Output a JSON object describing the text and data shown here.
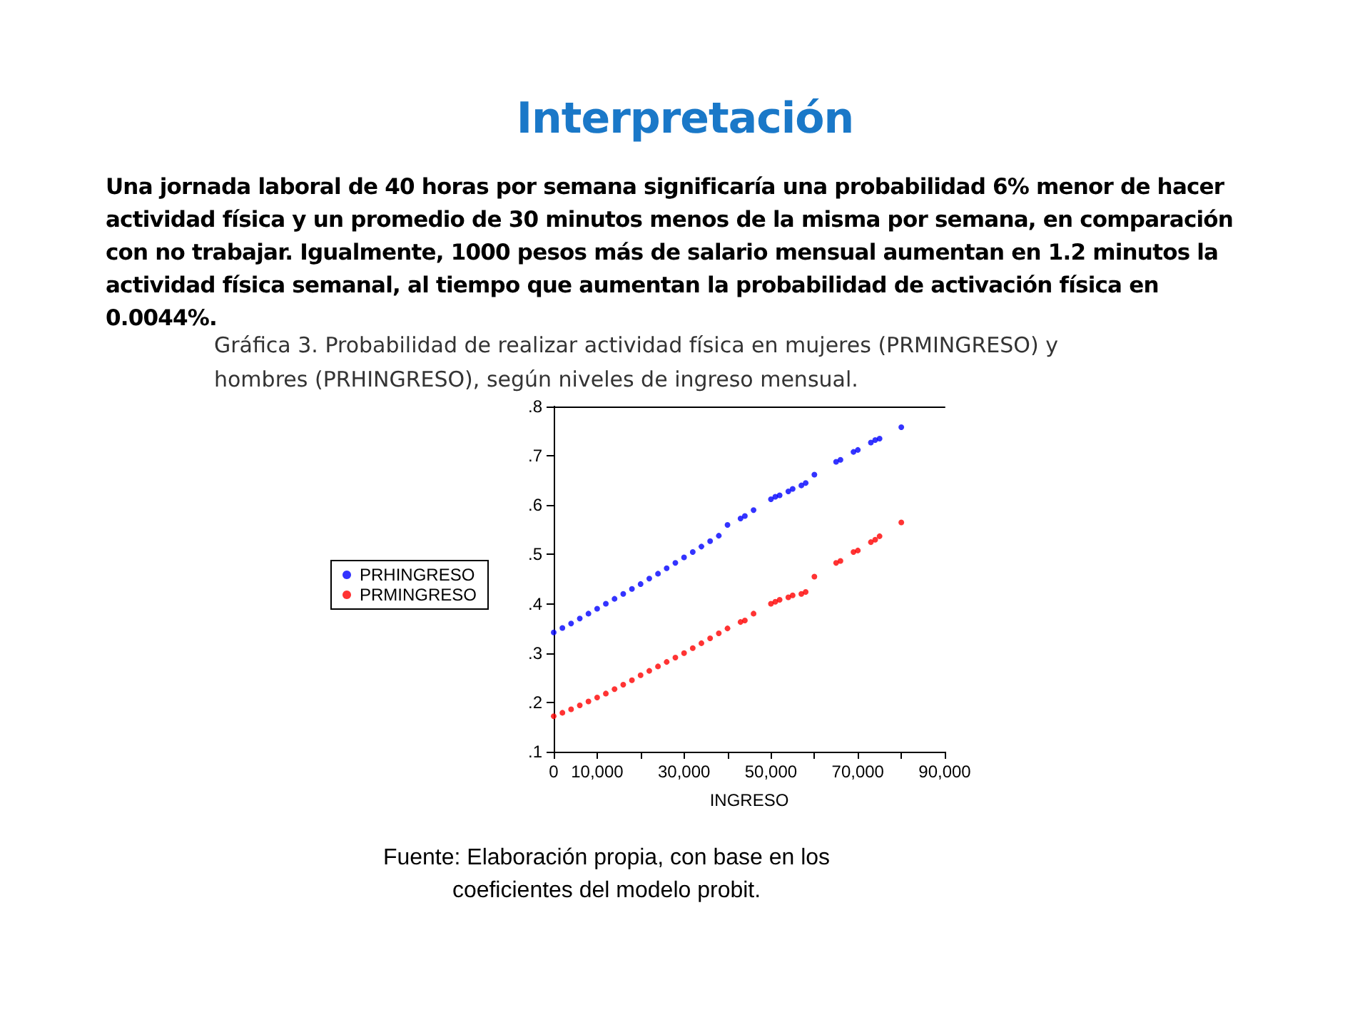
{
  "chart_data": {
    "type": "scatter",
    "title": "Interpretación",
    "subtitle": "Una jornada laboral de 40 horas por semana significaría una probabilidad 6%  menor de hacer actividad física y un promedio de 30 minutos menos de la misma por semana, en comparación con no trabajar. Igualmente, 1000 pesos más de salario mensual aumentan en 1.2 minutos la actividad física semanal, al tiempo que aumentan la probabilidad de activación física en 0.0044%.",
    "annotations": [
      "Gráfica 3. Probabilidad de realizar actividad física en mujeres (PRMINGRESO) y hombres (PRHINGRESO), según niveles de ingreso mensual.",
      "Fuente: Elaboración propia, con base en los coeficientes del modelo probit."
    ],
    "xlabel": "INGRESO",
    "xlim": [
      0,
      90000
    ],
    "xticks": [
      {
        "value": 0,
        "label": "0"
      },
      {
        "value": 10000,
        "label": "10,000"
      },
      {
        "value": 20000,
        "label": null
      },
      {
        "value": 30000,
        "label": "30,000"
      },
      {
        "value": 40000,
        "label": null
      },
      {
        "value": 50000,
        "label": "50,000"
      },
      {
        "value": 60000,
        "label": null
      },
      {
        "value": 70000,
        "label": "70,000"
      },
      {
        "value": 80000,
        "label": null
      },
      {
        "value": 90000,
        "label": "90,000"
      }
    ],
    "ylim": [
      0.1,
      0.8
    ],
    "yticks": [
      {
        "value": 0.1,
        "label": ".1"
      },
      {
        "value": 0.2,
        "label": ".2"
      },
      {
        "value": 0.3,
        "label": ".3"
      },
      {
        "value": 0.4,
        "label": ".4"
      },
      {
        "value": 0.5,
        "label": ".5"
      },
      {
        "value": 0.6,
        "label": ".6"
      },
      {
        "value": 0.7,
        "label": ".7"
      },
      {
        "value": 0.8,
        "label": ".8"
      }
    ],
    "x": [
      0,
      2000,
      4000,
      6000,
      8000,
      10000,
      12000,
      14000,
      16000,
      18000,
      20000,
      22000,
      24000,
      26000,
      28000,
      30000,
      32000,
      34000,
      36000,
      38000,
      40000,
      43000,
      44000,
      46000,
      50000,
      51000,
      52000,
      54000,
      55000,
      57000,
      58000,
      60000,
      65000,
      66000,
      69000,
      70000,
      73000,
      74000,
      75000,
      80000
    ],
    "series": [
      {
        "name": "PRHINGRESO",
        "color": "#0000ff",
        "values": [
          0.342,
          0.351,
          0.36,
          0.37,
          0.38,
          0.39,
          0.4,
          0.41,
          0.42,
          0.43,
          0.44,
          0.451,
          0.461,
          0.472,
          0.483,
          0.494,
          0.505,
          0.516,
          0.527,
          0.538,
          0.56,
          0.573,
          0.578,
          0.59,
          0.612,
          0.617,
          0.62,
          0.628,
          0.633,
          0.64,
          0.645,
          0.662,
          0.688,
          0.692,
          0.708,
          0.712,
          0.727,
          0.732,
          0.735,
          0.758
        ]
      },
      {
        "name": "PRMINGRESO",
        "color": "#ff0000",
        "values": [
          0.172,
          0.179,
          0.186,
          0.194,
          0.202,
          0.21,
          0.218,
          0.227,
          0.236,
          0.245,
          0.255,
          0.264,
          0.273,
          0.282,
          0.291,
          0.3,
          0.31,
          0.32,
          0.33,
          0.34,
          0.35,
          0.363,
          0.366,
          0.38,
          0.4,
          0.404,
          0.408,
          0.413,
          0.417,
          0.42,
          0.424,
          0.455,
          0.483,
          0.487,
          0.505,
          0.508,
          0.525,
          0.53,
          0.537,
          0.565
        ]
      }
    ],
    "marker": "circle",
    "legend": "left",
    "grid": false
  }
}
